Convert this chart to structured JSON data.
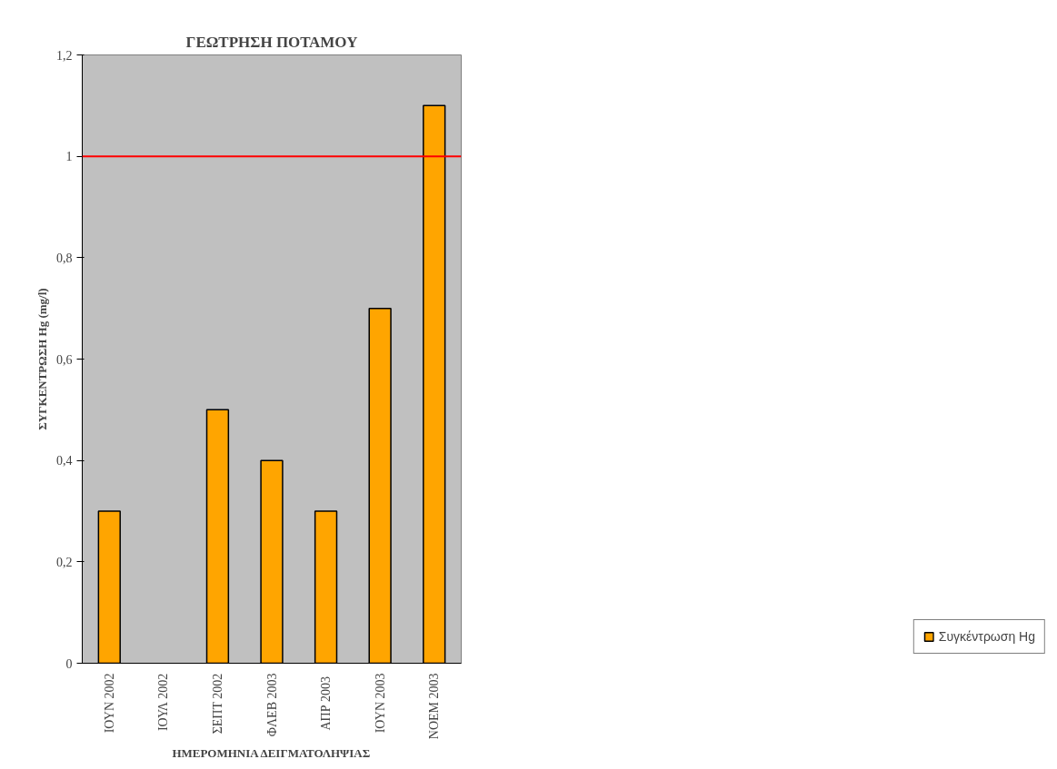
{
  "chart_data": {
    "type": "bar",
    "title": "ΓΕΩΤΡΗΣΗ ΠΟΤΑΜΟΥ",
    "xlabel": "ΗΜΕΡΟΜΗΝΙΑ ΔΕΙΓΜΑΤΟΛΗΨΙΑΣ",
    "ylabel": "ΣΥΓΚΕΝΤΡΩΣΗ Hg (mg/l)",
    "categories": [
      "ΙΟΥΝ 2002",
      "ΙΟΥΛ 2002",
      "ΣΕΠΤ 2002",
      "ΦΛΕΒ 2003",
      "ΑΠΡ  2003",
      "ΙΟΥΝ 2003",
      "ΝΟΕΜ 2003"
    ],
    "series": [
      {
        "name": "Συγκέντρωση Hg",
        "color": "#ffa500",
        "values": [
          0.3,
          null,
          0.5,
          0.4,
          0.3,
          0.7,
          1.1
        ]
      }
    ],
    "ylim": [
      0,
      1.2
    ],
    "yticks": [
      0,
      {
        "value": 0.2,
        "label": "0,2"
      },
      {
        "value": 0.4,
        "label": "0,4"
      },
      {
        "value": 0.6,
        "label": "0,6"
      },
      {
        "value": 0.8,
        "label": "0,8"
      },
      1,
      {
        "value": 1.2,
        "label": "1,2"
      }
    ],
    "ref_lines": [
      {
        "axis": "y",
        "value": 1,
        "color": "#ff0000"
      }
    ],
    "grid": false,
    "legend": "bottom right"
  }
}
